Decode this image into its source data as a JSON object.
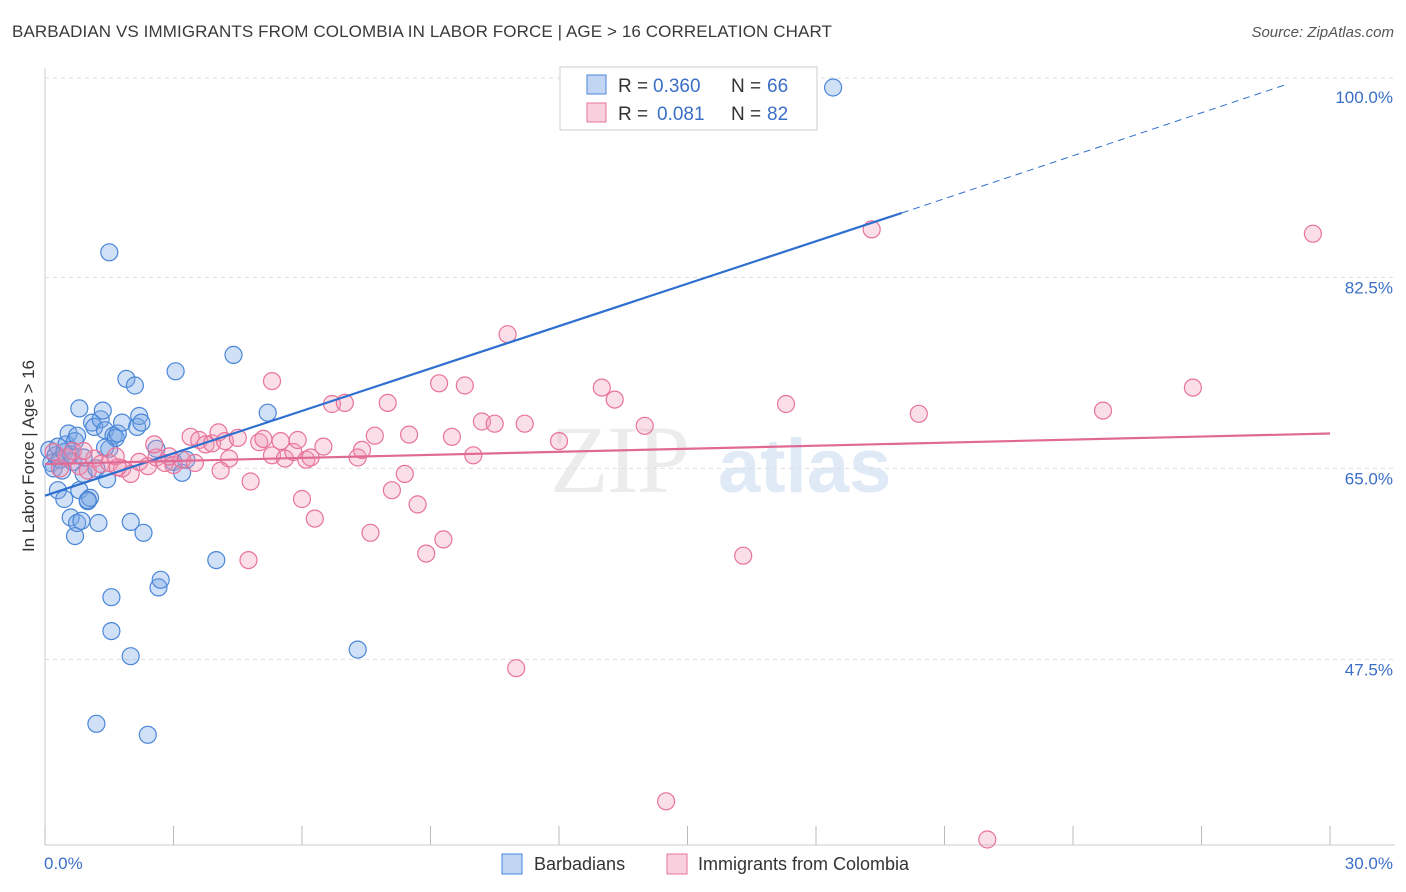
{
  "header": {
    "title": "BARBADIAN VS IMMIGRANTS FROM COLOMBIA IN LABOR FORCE | AGE > 16 CORRELATION CHART",
    "source": "Source: ZipAtlas.com"
  },
  "colors": {
    "blue": "#4a86d8",
    "blue_fill": "rgba(120,165,230,0.35)",
    "blue_line": "#2e6fd0",
    "pink": "#e8739a",
    "pink_fill": "rgba(240,150,180,0.30)",
    "pink_line": "#e06a94",
    "grid": "#dddddd",
    "tick_label": "#3b6fc6"
  },
  "chart_data": {
    "type": "scatter",
    "xlabel": "",
    "ylabel": "In Labor Force | Age > 16",
    "xlim": [
      0,
      30
    ],
    "ylim": [
      30.5,
      101.5
    ],
    "x_tick_labels": [
      "0.0%",
      "30.0%"
    ],
    "y_ticks": [
      47.5,
      65.0,
      82.5,
      100.0
    ],
    "y_tick_labels": [
      "47.5%",
      "65.0%",
      "82.5%",
      "100.0%"
    ],
    "grid": true,
    "legend_position": "top-center",
    "legend": [
      {
        "r_label": "R =",
        "r": "0.360",
        "n_label": "N =",
        "n": "66"
      },
      {
        "r_label": "R =",
        "r": "0.081",
        "n_label": "N =",
        "n": "82"
      }
    ],
    "series": [
      {
        "name": "Barbadians",
        "color": "#4a86d8",
        "trend": {
          "x0": 0,
          "y0": 62.5,
          "x1": 20.0,
          "y1": 88.4,
          "dash_to_x": 29.0,
          "dash_to_y": 100.2
        },
        "points": [
          [
            0.1,
            66.7
          ],
          [
            0.15,
            65.5
          ],
          [
            0.2,
            65.0
          ],
          [
            0.25,
            66.2
          ],
          [
            0.3,
            67.0
          ],
          [
            0.35,
            65.8
          ],
          [
            0.4,
            64.8
          ],
          [
            0.45,
            66.5
          ],
          [
            0.5,
            67.2
          ],
          [
            0.55,
            68.2
          ],
          [
            0.6,
            66.3
          ],
          [
            0.65,
            65.6
          ],
          [
            0.7,
            67.5
          ],
          [
            0.75,
            68.0
          ],
          [
            0.8,
            70.5
          ],
          [
            0.3,
            63.0
          ],
          [
            0.45,
            62.2
          ],
          [
            0.6,
            60.5
          ],
          [
            0.7,
            58.8
          ],
          [
            0.75,
            60.0
          ],
          [
            0.8,
            63.0
          ],
          [
            0.85,
            60.2
          ],
          [
            0.9,
            64.5
          ],
          [
            1.0,
            62.0
          ],
          [
            1.05,
            62.3
          ],
          [
            1.1,
            69.2
          ],
          [
            1.15,
            68.8
          ],
          [
            1.2,
            65.0
          ],
          [
            1.25,
            60.0
          ],
          [
            1.3,
            69.5
          ],
          [
            1.35,
            70.3
          ],
          [
            1.4,
            68.5
          ],
          [
            1.45,
            64.0
          ],
          [
            1.5,
            66.8
          ],
          [
            1.6,
            68.0
          ],
          [
            1.65,
            67.8
          ],
          [
            1.7,
            68.2
          ],
          [
            1.8,
            69.2
          ],
          [
            1.9,
            73.2
          ],
          [
            2.0,
            60.1
          ],
          [
            2.1,
            72.6
          ],
          [
            2.15,
            68.8
          ],
          [
            2.2,
            69.8
          ],
          [
            2.25,
            69.2
          ],
          [
            2.3,
            59.1
          ],
          [
            1.5,
            84.8
          ],
          [
            1.55,
            53.2
          ],
          [
            1.55,
            50.1
          ],
          [
            2.0,
            47.8
          ],
          [
            1.2,
            41.6
          ],
          [
            2.4,
            40.6
          ],
          [
            2.65,
            54.1
          ],
          [
            2.7,
            54.8
          ],
          [
            2.6,
            66.8
          ],
          [
            3.0,
            65.6
          ],
          [
            3.05,
            73.9
          ],
          [
            3.2,
            64.6
          ],
          [
            3.3,
            65.8
          ],
          [
            4.0,
            56.6
          ],
          [
            4.4,
            75.4
          ],
          [
            5.2,
            70.1
          ],
          [
            7.3,
            48.4
          ],
          [
            18.4,
            99.9
          ],
          [
            1.0,
            62.1
          ],
          [
            0.9,
            66.0
          ],
          [
            1.4,
            66.9
          ]
        ]
      },
      {
        "name": "Immigrants from Colombia",
        "color": "#e8739a",
        "trend": {
          "x0": 0,
          "y0": 65.4,
          "x1": 30,
          "y1": 68.2
        },
        "points": [
          [
            0.2,
            66.5
          ],
          [
            0.35,
            65.0
          ],
          [
            0.5,
            66.0
          ],
          [
            0.65,
            66.6
          ],
          [
            0.8,
            65.2
          ],
          [
            1.0,
            64.8
          ],
          [
            1.15,
            65.9
          ],
          [
            1.3,
            65.4
          ],
          [
            1.5,
            65.5
          ],
          [
            1.65,
            66.1
          ],
          [
            1.8,
            65.0
          ],
          [
            2.0,
            64.5
          ],
          [
            2.2,
            65.6
          ],
          [
            2.4,
            65.2
          ],
          [
            2.6,
            66.0
          ],
          [
            2.8,
            65.5
          ],
          [
            3.0,
            65.3
          ],
          [
            3.2,
            65.8
          ],
          [
            3.4,
            67.9
          ],
          [
            3.6,
            67.6
          ],
          [
            3.75,
            67.2
          ],
          [
            3.9,
            67.3
          ],
          [
            4.05,
            68.3
          ],
          [
            4.2,
            67.5
          ],
          [
            4.3,
            65.9
          ],
          [
            4.5,
            67.8
          ],
          [
            4.8,
            63.8
          ],
          [
            5.0,
            67.4
          ],
          [
            5.1,
            67.7
          ],
          [
            5.3,
            66.2
          ],
          [
            5.5,
            67.5
          ],
          [
            5.6,
            65.9
          ],
          [
            5.8,
            66.5
          ],
          [
            6.0,
            62.2
          ],
          [
            6.1,
            65.8
          ],
          [
            6.2,
            66.0
          ],
          [
            6.5,
            67.0
          ],
          [
            6.7,
            70.9
          ],
          [
            7.0,
            71.0
          ],
          [
            7.3,
            66.0
          ],
          [
            7.4,
            66.7
          ],
          [
            7.6,
            59.1
          ],
          [
            8.1,
            63.0
          ],
          [
            8.4,
            64.5
          ],
          [
            8.5,
            68.1
          ],
          [
            8.7,
            61.7
          ],
          [
            8.9,
            57.2
          ],
          [
            9.3,
            58.5
          ],
          [
            9.5,
            67.9
          ],
          [
            9.8,
            72.6
          ],
          [
            10.0,
            66.2
          ],
          [
            10.2,
            69.3
          ],
          [
            10.5,
            69.1
          ],
          [
            10.8,
            77.3
          ],
          [
            11.2,
            69.1
          ],
          [
            12.0,
            67.5
          ],
          [
            13.0,
            72.4
          ],
          [
            13.3,
            71.3
          ],
          [
            14.0,
            68.9
          ],
          [
            14.5,
            34.5
          ],
          [
            16.3,
            57.0
          ],
          [
            17.3,
            70.9
          ],
          [
            19.3,
            86.9
          ],
          [
            20.4,
            70.0
          ],
          [
            22.0,
            31.0
          ],
          [
            24.7,
            70.3
          ],
          [
            26.8,
            72.4
          ],
          [
            29.6,
            86.5
          ],
          [
            9.2,
            72.8
          ],
          [
            11.0,
            46.7
          ],
          [
            5.3,
            73.0
          ],
          [
            4.75,
            56.6
          ],
          [
            1.7,
            65.1
          ],
          [
            2.55,
            67.2
          ],
          [
            3.5,
            65.5
          ],
          [
            4.1,
            64.8
          ],
          [
            6.3,
            60.4
          ],
          [
            2.9,
            66.1
          ],
          [
            5.9,
            67.6
          ],
          [
            7.7,
            68.0
          ],
          [
            8.0,
            71.0
          ],
          [
            0.9,
            66.6
          ]
        ]
      }
    ]
  },
  "bottom_legend": [
    "Barbadians",
    "Immigrants from Colombia"
  ],
  "watermark": "ZIPatlas"
}
